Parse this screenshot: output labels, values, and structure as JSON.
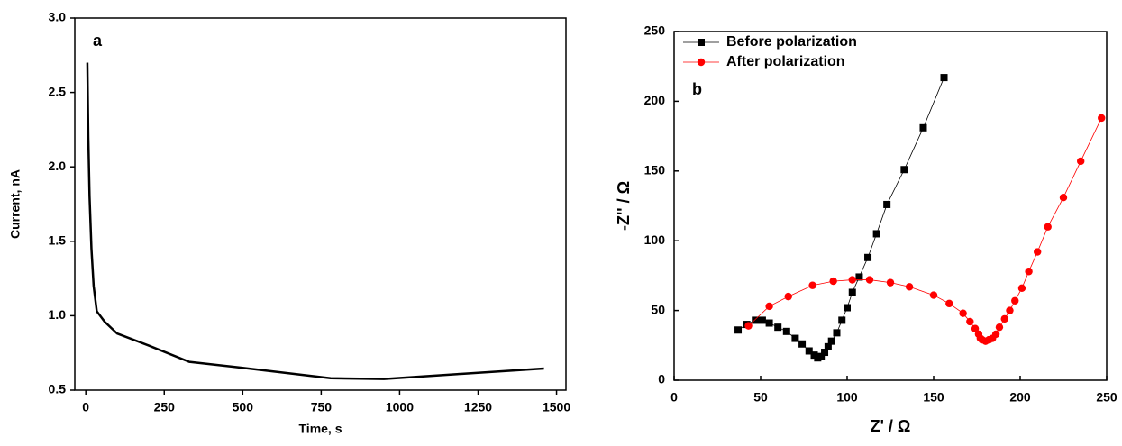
{
  "chart_data": [
    {
      "type": "line",
      "panel_label": "a",
      "xlabel": "Time, s",
      "ylabel": "Current, nA",
      "xlim": [
        -35,
        1530
      ],
      "xticks": [
        0,
        250,
        500,
        750,
        1000,
        1250,
        1500
      ],
      "ylim": [
        0.5,
        3.0
      ],
      "yticks": [
        0.5,
        {
          "value": 1.0,
          "label": "1.0"
        },
        1.5,
        {
          "value": 2.0,
          "label": "2.0"
        },
        2.5,
        {
          "value": 3.0,
          "label": "3.0"
        }
      ],
      "series": [
        {
          "color": "#000000",
          "x": [
            5,
            8,
            12,
            18,
            25,
            35,
            60,
            100,
            200,
            330,
            500,
            780,
            950,
            1200,
            1460
          ],
          "values": [
            2.7,
            2.2,
            1.8,
            1.45,
            1.2,
            1.03,
            0.96,
            0.88,
            0.8,
            0.69,
            0.65,
            0.58,
            0.575,
            0.61,
            0.645
          ]
        }
      ]
    },
    {
      "type": "scatter",
      "panel_label": "b",
      "xlabel": "Z' / Ω",
      "ylabel": "-Z'' / Ω",
      "xlim": [
        0,
        250
      ],
      "xticks": [
        0,
        50,
        100,
        150,
        200,
        250
      ],
      "ylim": [
        0,
        250
      ],
      "yticks": [
        0,
        50,
        100,
        150,
        200,
        250
      ],
      "legend": "upper left",
      "series": [
        {
          "name": "Before polarization",
          "color": "#000000",
          "marker": "square",
          "x": [
            37,
            42,
            47,
            51,
            55,
            60,
            65,
            70,
            74,
            78,
            81,
            83,
            85,
            87,
            89,
            91,
            94,
            97,
            100,
            103,
            107,
            112,
            117,
            123,
            133,
            144,
            156
          ],
          "values": [
            36,
            40,
            43,
            43,
            41,
            38,
            35,
            30,
            26,
            21,
            18,
            16,
            17,
            20,
            24,
            28,
            34,
            43,
            52,
            63,
            74,
            88,
            105,
            126,
            151,
            181,
            217
          ]
        },
        {
          "name": "After polarization",
          "color": "#ff0000",
          "marker": "circle",
          "x": [
            43,
            55,
            66,
            80,
            92,
            103,
            113,
            125,
            136,
            150,
            159,
            167,
            171,
            174,
            176,
            177,
            178,
            180,
            182,
            184,
            186,
            188,
            191,
            194,
            197,
            201,
            205,
            210,
            216,
            225,
            235,
            247
          ],
          "values": [
            39,
            53,
            60,
            68,
            71,
            72,
            72,
            70,
            67,
            61,
            55,
            48,
            42,
            37,
            33,
            30,
            29,
            28,
            29,
            30,
            33,
            38,
            44,
            50,
            57,
            66,
            78,
            92,
            110,
            131,
            157,
            188
          ]
        }
      ]
    }
  ]
}
